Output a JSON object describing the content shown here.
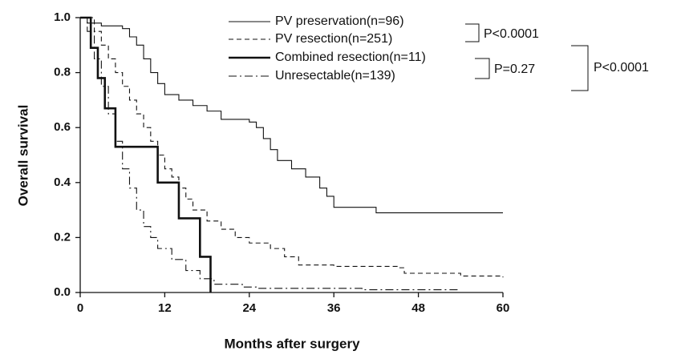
{
  "chart_data": {
    "type": "step",
    "xlabel": "Months after surgery",
    "ylabel": "Overall survival",
    "xlim": [
      0,
      60
    ],
    "xticks": [
      0,
      12,
      24,
      36,
      48,
      60
    ],
    "ylim": [
      0,
      1
    ],
    "yticks": [
      {
        "value": 0,
        "label": "0.0"
      },
      0.2,
      0.4,
      0.6,
      0.8,
      {
        "value": 1,
        "label": "1.0"
      }
    ],
    "series": [
      {
        "name": "PV preservation(n=96)",
        "color": "#111111",
        "dash": "solid",
        "width": 1.1,
        "x": [
          0,
          1,
          3,
          6,
          7,
          8,
          9,
          10,
          11,
          12,
          14,
          16,
          18,
          20,
          24,
          25,
          26,
          27,
          28,
          30,
          32,
          34,
          35,
          36,
          42,
          60
        ],
        "values": [
          1.0,
          0.98,
          0.97,
          0.96,
          0.93,
          0.9,
          0.85,
          0.8,
          0.76,
          0.72,
          0.7,
          0.68,
          0.66,
          0.63,
          0.62,
          0.6,
          0.56,
          0.52,
          0.48,
          0.45,
          0.42,
          0.38,
          0.35,
          0.31,
          0.29,
          0.29
        ]
      },
      {
        "name": "PV resection(n=251)",
        "color": "#111111",
        "dash": "dashed",
        "width": 1.1,
        "x": [
          0,
          2,
          3,
          4,
          5,
          6,
          7,
          8,
          9,
          10,
          11,
          12,
          13,
          14,
          15,
          16,
          18,
          20,
          22,
          24,
          27,
          29,
          31,
          36,
          45,
          46,
          54,
          60
        ],
        "values": [
          1.0,
          0.95,
          0.9,
          0.85,
          0.8,
          0.75,
          0.7,
          0.65,
          0.6,
          0.55,
          0.5,
          0.45,
          0.42,
          0.38,
          0.34,
          0.3,
          0.26,
          0.23,
          0.2,
          0.18,
          0.16,
          0.13,
          0.1,
          0.095,
          0.09,
          0.07,
          0.06,
          0.055
        ]
      },
      {
        "name": "Combined resection(n=11)",
        "color": "#111111",
        "dash": "solid",
        "width": 2.6,
        "x": [
          0,
          1.5,
          2.5,
          3.5,
          5,
          11,
          14,
          17,
          18.5
        ],
        "values": [
          1.0,
          0.89,
          0.78,
          0.67,
          0.53,
          0.4,
          0.27,
          0.13,
          0
        ]
      },
      {
        "name": "Unresectable(n=139)",
        "color": "#111111",
        "dash": "dashdot",
        "width": 1.1,
        "x": [
          0,
          1,
          2,
          3,
          4,
          5,
          6,
          7,
          8,
          9,
          10,
          11,
          13,
          15,
          17,
          19,
          23,
          25,
          40,
          54
        ],
        "values": [
          1.0,
          0.95,
          0.85,
          0.75,
          0.65,
          0.55,
          0.45,
          0.38,
          0.3,
          0.24,
          0.2,
          0.16,
          0.12,
          0.08,
          0.05,
          0.03,
          0.02,
          0.015,
          0.01,
          0.01
        ]
      }
    ],
    "annotations": [
      "P<0.0001",
      "P=0.27",
      "P<0.0001"
    ]
  }
}
